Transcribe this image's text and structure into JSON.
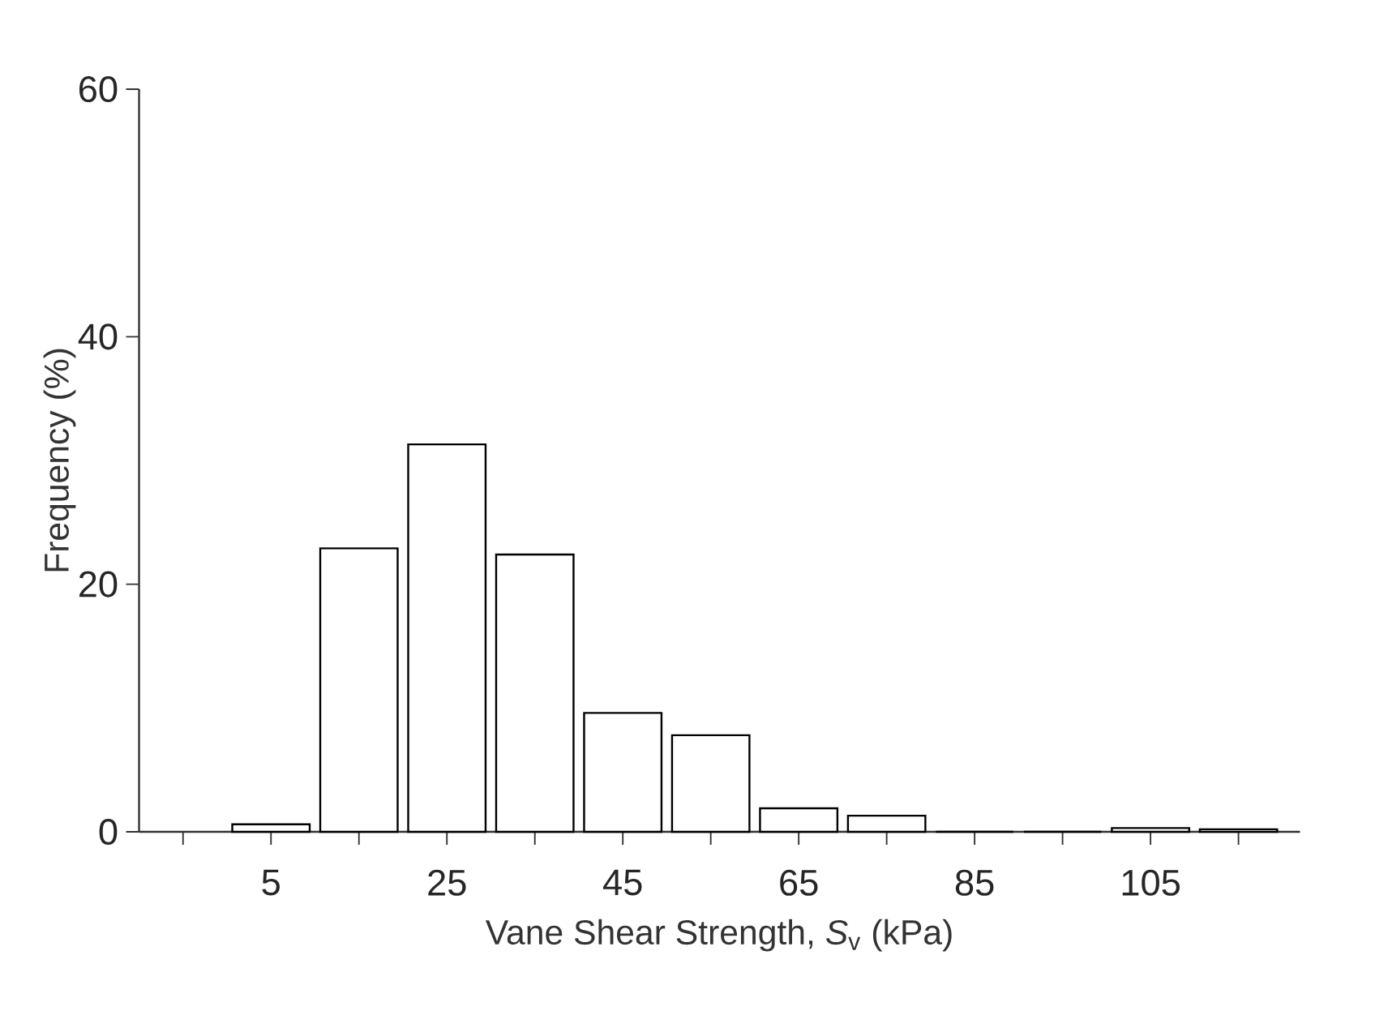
{
  "chart_data": {
    "type": "histogram",
    "xlabel": "Vane Shear Strength, *S*$_{v}$ (kPa)",
    "ylabel": "Frequency (%)",
    "bins": [
      0,
      10,
      20,
      30,
      40,
      50,
      60,
      70,
      80,
      90,
      100,
      110,
      120
    ],
    "values": [
      0.6,
      22.9,
      31.3,
      22.4,
      9.6,
      7.8,
      1.9,
      1.3,
      0,
      0,
      0.3,
      0.2
    ],
    "color": "#ffffff",
    "xlim": [
      -10,
      122
    ],
    "xticks": [
      {
        "value": -5,
        "label": null
      },
      5,
      {
        "value": 15,
        "label": null
      },
      25,
      {
        "value": 35,
        "label": null
      },
      45,
      {
        "value": 55,
        "label": null
      },
      65,
      {
        "value": 75,
        "label": null
      },
      85,
      {
        "value": 95,
        "label": null
      },
      105,
      {
        "value": 115,
        "label": null
      }
    ],
    "ylim": [
      0,
      60
    ],
    "yticks": [
      0,
      20,
      40,
      60
    ]
  }
}
